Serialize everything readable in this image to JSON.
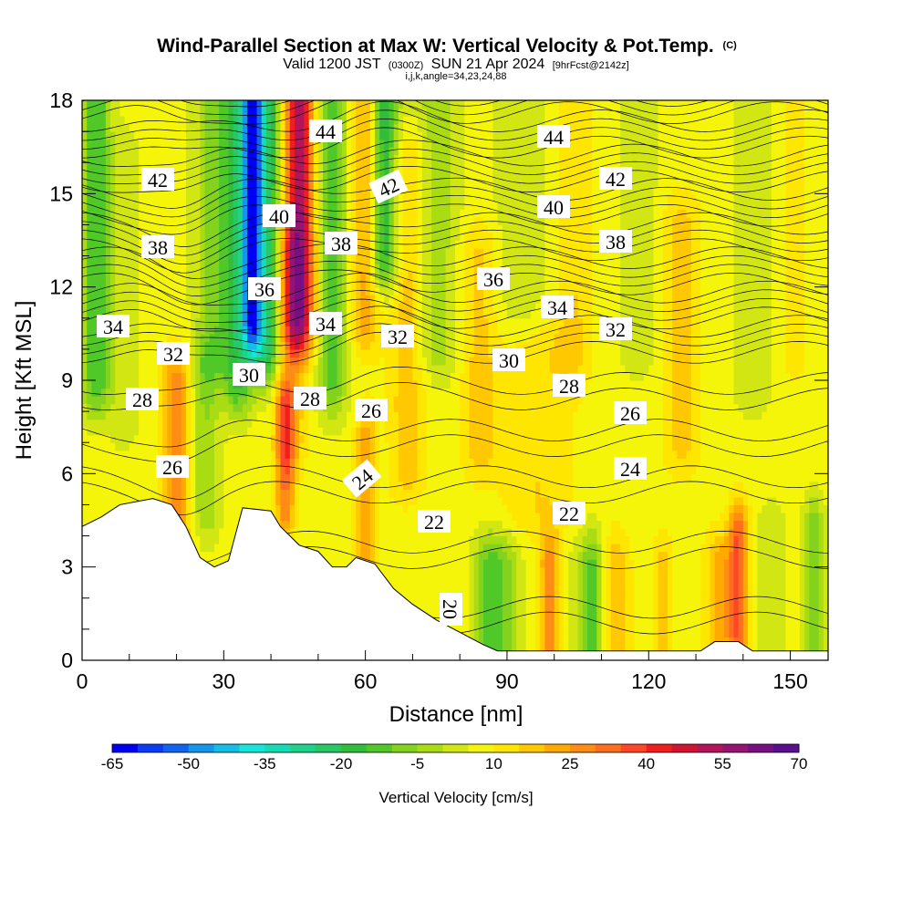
{
  "chart_data": {
    "type": "heatmap",
    "title": "Wind-Parallel Section at Max W: Vertical Velocity & Pot.Temp.",
    "title_suffix": "(C)",
    "subtitle_parts": [
      "Valid 1200 JST",
      "(0300Z)",
      "SUN 21 Apr 2024",
      "[9hrFcst@2142z]"
    ],
    "subtitle2": "i,j,k,angle=34,23,24,88",
    "xlabel": "Distance [nm]",
    "ylabel": "Height [Kft MSL]",
    "xlim": [
      0,
      158
    ],
    "ylim": [
      0,
      18
    ],
    "x_ticks": [
      "0",
      "30",
      "60",
      "90",
      "120",
      "150"
    ],
    "y_ticks": [
      "0",
      "3",
      "6",
      "9",
      "12",
      "15",
      "18"
    ],
    "colorbar": {
      "label": "Vertical Velocity [cm/s]",
      "tick_labels": [
        "-65",
        "-50",
        "-35",
        "-20",
        "-5",
        "10",
        "25",
        "40",
        "55",
        "70"
      ],
      "colors": [
        "#0000f5",
        "#0a3cf5",
        "#1264f0",
        "#1496eb",
        "#14bee6",
        "#14e6dc",
        "#14dcb4",
        "#1ed28c",
        "#28c864",
        "#32be3c",
        "#50c828",
        "#82d21e",
        "#aadc14",
        "#d2e614",
        "#f5f50a",
        "#ffe600",
        "#ffc800",
        "#ffaa00",
        "#ff8c14",
        "#ff6e1e",
        "#ff4628",
        "#f01e1e",
        "#d21432",
        "#b4145a",
        "#961473",
        "#780f82",
        "#5a0f8c"
      ]
    },
    "theta_isentropes_C": [
      20,
      22,
      24,
      26,
      28,
      30,
      32,
      34,
      36,
      38,
      40,
      42,
      44
    ],
    "theta_labels": [
      "44",
      "44",
      "42",
      "42",
      "42",
      "40",
      "40",
      "38",
      "38",
      "38",
      "36",
      "36",
      "34",
      "34",
      "34",
      "32",
      "32",
      "32",
      "30",
      "30",
      "28",
      "28",
      "28",
      "26",
      "26",
      "26",
      "24",
      "24",
      "22",
      "22",
      "20"
    ],
    "terrain_kft": [
      [
        0,
        4.3
      ],
      [
        4,
        4.6
      ],
      [
        8,
        5.0
      ],
      [
        15,
        5.2
      ],
      [
        19,
        5.0
      ],
      [
        22,
        4.3
      ],
      [
        25,
        3.3
      ],
      [
        28,
        3.0
      ],
      [
        31,
        3.2
      ],
      [
        34,
        4.9
      ],
      [
        40,
        4.8
      ],
      [
        42,
        4.3
      ],
      [
        46,
        3.7
      ],
      [
        50,
        3.5
      ],
      [
        53,
        3.0
      ],
      [
        56,
        3.0
      ],
      [
        58,
        3.3
      ],
      [
        62,
        3.1
      ],
      [
        66,
        2.3
      ],
      [
        70,
        1.8
      ],
      [
        75,
        1.3
      ],
      [
        80,
        0.9
      ],
      [
        85,
        0.5
      ],
      [
        88,
        0.3
      ],
      [
        100,
        0.3
      ],
      [
        131,
        0.3
      ],
      [
        134,
        0.6
      ],
      [
        139,
        0.6
      ],
      [
        142,
        0.3
      ],
      [
        158,
        0.3
      ]
    ]
  }
}
